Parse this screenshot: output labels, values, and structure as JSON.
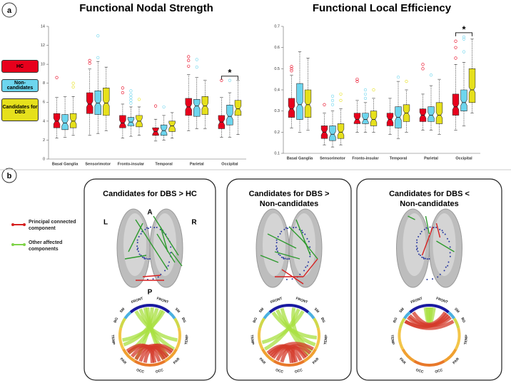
{
  "panel_labels": [
    "a",
    "b"
  ],
  "chart_data": [
    {
      "type": "box",
      "title": "Functional Nodal Strength",
      "categories": [
        "Basal Ganglia",
        "Sensorimotor",
        "Fronto-insular",
        "Temporal",
        "Parietal",
        "Occipital"
      ],
      "ylim": [
        0,
        14
      ],
      "yticks": [
        0,
        2,
        4,
        6,
        8,
        10,
        12,
        14
      ],
      "annotation": "*",
      "annotation_category": 5,
      "series": [
        {
          "name": "HC",
          "color": "#e8001c",
          "values": [
            {
              "whislo": 2.2,
              "q1": 3.3,
              "med": 4.0,
              "q3": 4.8,
              "whishi": 6.5,
              "fliers": [
                8.6
              ]
            },
            {
              "whislo": 2.5,
              "q1": 4.8,
              "med": 5.8,
              "q3": 7.0,
              "whishi": 9.5,
              "fliers": [
                10.1,
                10.4
              ]
            },
            {
              "whislo": 2.2,
              "q1": 3.3,
              "med": 3.8,
              "q3": 4.6,
              "whishi": 5.8,
              "fliers": [
                7.0,
                7.5
              ]
            },
            {
              "whislo": 1.9,
              "q1": 2.5,
              "med": 2.9,
              "q3": 3.3,
              "whishi": 4.2,
              "fliers": [
                5.6
              ]
            },
            {
              "whislo": 3.0,
              "q1": 4.6,
              "med": 5.5,
              "q3": 6.4,
              "whishi": 8.9,
              "fliers": [
                9.8,
                10.4,
                10.8
              ]
            },
            {
              "whislo": 2.3,
              "q1": 3.2,
              "med": 3.9,
              "q3": 4.6,
              "whishi": 6.5,
              "fliers": [
                8.3
              ]
            }
          ]
        },
        {
          "name": "Non-candidates",
          "color": "#6dd5ee",
          "values": [
            {
              "whislo": 2.3,
              "q1": 3.1,
              "med": 3.8,
              "q3": 4.7,
              "whishi": 6.6,
              "fliers": []
            },
            {
              "whislo": 2.7,
              "q1": 4.7,
              "med": 5.9,
              "q3": 7.2,
              "whishi": 10.3,
              "fliers": [
                10.7,
                13.0
              ]
            },
            {
              "whislo": 2.4,
              "q1": 3.5,
              "med": 3.9,
              "q3": 4.4,
              "whishi": 5.5,
              "fliers": [
                5.9,
                6.2,
                6.5,
                6.8,
                7.2
              ]
            },
            {
              "whislo": 2.0,
              "q1": 2.5,
              "med": 3.0,
              "q3": 3.6,
              "whishi": 4.6,
              "fliers": [
                5.5
              ]
            },
            {
              "whislo": 3.2,
              "q1": 4.5,
              "med": 5.6,
              "q3": 6.3,
              "whishi": 8.6,
              "fliers": [
                9.7,
                10.5
              ]
            },
            {
              "whislo": 2.3,
              "q1": 3.6,
              "med": 4.5,
              "q3": 5.7,
              "whishi": 7.0,
              "fliers": [
                8.3
              ]
            }
          ]
        },
        {
          "name": "Candidates for DBS",
          "color": "#e6e01c",
          "values": [
            {
              "whislo": 2.5,
              "q1": 3.3,
              "med": 4.0,
              "q3": 4.8,
              "whishi": 6.6,
              "fliers": [
                7.6,
                8.0
              ]
            },
            {
              "whislo": 3.0,
              "q1": 4.6,
              "med": 5.9,
              "q3": 7.5,
              "whishi": 9.7,
              "fliers": []
            },
            {
              "whislo": 2.5,
              "q1": 3.4,
              "med": 4.0,
              "q3": 4.6,
              "whishi": 5.5,
              "fliers": [
                6.3
              ]
            },
            {
              "whislo": 2.2,
              "q1": 2.9,
              "med": 3.5,
              "q3": 4.0,
              "whishi": 4.9,
              "fliers": []
            },
            {
              "whislo": 3.2,
              "q1": 4.7,
              "med": 5.6,
              "q3": 6.6,
              "whishi": 8.3,
              "fliers": []
            },
            {
              "whislo": 2.6,
              "q1": 4.6,
              "med": 5.3,
              "q3": 6.2,
              "whishi": 8.3,
              "fliers": []
            }
          ]
        }
      ]
    },
    {
      "type": "box",
      "title": "Functional Local Efficiency",
      "categories": [
        "Basal Ganglia",
        "Sensorimotor",
        "Fronto-insular",
        "Temporal",
        "Parietal",
        "Occipital"
      ],
      "ylim": [
        0.1,
        0.7
      ],
      "yticks": [
        0.1,
        0.2,
        0.3,
        0.4,
        0.5,
        0.6,
        0.7
      ],
      "annotation": "*",
      "annotation_category": 5,
      "series": [
        {
          "name": "HC",
          "color": "#e8001c",
          "values": [
            {
              "whislo": 0.22,
              "q1": 0.27,
              "med": 0.31,
              "q3": 0.36,
              "whishi": 0.47,
              "fliers": [
                0.49,
                0.5,
                0.51
              ]
            },
            {
              "whislo": 0.14,
              "q1": 0.17,
              "med": 0.2,
              "q3": 0.23,
              "whishi": 0.29,
              "fliers": [
                0.33
              ]
            },
            {
              "whislo": 0.2,
              "q1": 0.24,
              "med": 0.26,
              "q3": 0.29,
              "whishi": 0.35,
              "fliers": [
                0.44,
                0.45
              ]
            },
            {
              "whislo": 0.19,
              "q1": 0.23,
              "med": 0.26,
              "q3": 0.29,
              "whishi": 0.36,
              "fliers": []
            },
            {
              "whislo": 0.21,
              "q1": 0.25,
              "med": 0.28,
              "q3": 0.31,
              "whishi": 0.38,
              "fliers": [
                0.5,
                0.52
              ]
            },
            {
              "whislo": 0.21,
              "q1": 0.28,
              "med": 0.32,
              "q3": 0.38,
              "whishi": 0.52,
              "fliers": [
                0.55,
                0.6,
                0.63
              ]
            }
          ]
        },
        {
          "name": "Non-candidates",
          "color": "#6dd5ee",
          "values": [
            {
              "whislo": 0.2,
              "q1": 0.26,
              "med": 0.33,
              "q3": 0.43,
              "whishi": 0.58,
              "fliers": []
            },
            {
              "whislo": 0.13,
              "q1": 0.16,
              "med": 0.19,
              "q3": 0.23,
              "whishi": 0.3,
              "fliers": [
                0.33,
                0.35,
                0.37
              ]
            },
            {
              "whislo": 0.2,
              "q1": 0.24,
              "med": 0.26,
              "q3": 0.29,
              "whishi": 0.34,
              "fliers": [
                0.36,
                0.38,
                0.4
              ]
            },
            {
              "whislo": 0.17,
              "q1": 0.22,
              "med": 0.27,
              "q3": 0.32,
              "whishi": 0.44,
              "fliers": [
                0.46
              ]
            },
            {
              "whislo": 0.21,
              "q1": 0.25,
              "med": 0.28,
              "q3": 0.32,
              "whishi": 0.42,
              "fliers": [
                0.47
              ]
            },
            {
              "whislo": 0.23,
              "q1": 0.3,
              "med": 0.34,
              "q3": 0.4,
              "whishi": 0.53,
              "fliers": [
                0.58,
                0.64,
                0.65
              ]
            }
          ]
        },
        {
          "name": "Candidates for DBS",
          "color": "#e6e01c",
          "values": [
            {
              "whislo": 0.21,
              "q1": 0.27,
              "med": 0.33,
              "q3": 0.4,
              "whishi": 0.55,
              "fliers": []
            },
            {
              "whislo": 0.14,
              "q1": 0.17,
              "med": 0.2,
              "q3": 0.24,
              "whishi": 0.31,
              "fliers": [
                0.35,
                0.38
              ]
            },
            {
              "whislo": 0.2,
              "q1": 0.23,
              "med": 0.26,
              "q3": 0.3,
              "whishi": 0.36,
              "fliers": [
                0.4
              ]
            },
            {
              "whislo": 0.2,
              "q1": 0.25,
              "med": 0.29,
              "q3": 0.33,
              "whishi": 0.4,
              "fliers": [
                0.44
              ]
            },
            {
              "whislo": 0.19,
              "q1": 0.24,
              "med": 0.28,
              "q3": 0.34,
              "whishi": 0.45,
              "fliers": []
            },
            {
              "whislo": 0.29,
              "q1": 0.34,
              "med": 0.4,
              "q3": 0.5,
              "whishi": 0.64,
              "fliers": []
            }
          ]
        }
      ]
    }
  ],
  "legend_b": [
    "Principal connected component",
    "Other affected components"
  ],
  "panel_b": [
    {
      "title_lines": [
        "Candidates for DBS > HC"
      ],
      "orientation_labels": [
        "A",
        "P",
        "L",
        "R"
      ],
      "chord_labels": [
        "FRONT",
        "FRONT",
        "SM",
        "SM",
        "BG",
        "BG",
        "TEMP",
        "TEMP",
        "PAR",
        "PAR",
        "OCC",
        "OCC"
      ]
    },
    {
      "title_lines": [
        "Candidates for DBS >",
        "Non-candidates"
      ],
      "chord_labels": [
        "FRONT",
        "FRONT",
        "SM",
        "SM",
        "BG",
        "BG",
        "TEMP",
        "TEMP",
        "PAR",
        "PAR",
        "OCC",
        "OCC"
      ]
    },
    {
      "title_lines": [
        "Candidates for DBS <",
        "Non-candidates"
      ],
      "chord_labels": [
        "FRONT",
        "FRONT",
        "SM",
        "SM",
        "BG",
        "BG",
        "TEMP",
        "TEMP",
        "PAR",
        "PAR",
        "OCC",
        "OCC"
      ]
    }
  ]
}
